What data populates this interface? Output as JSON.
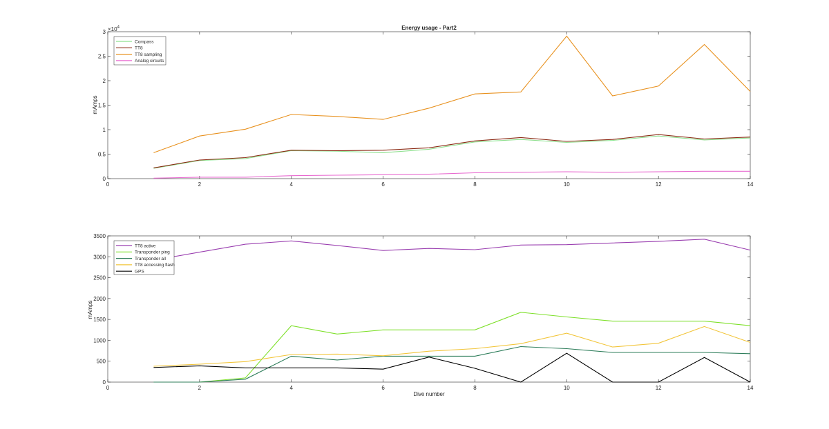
{
  "chart_data": [
    {
      "type": "line",
      "title": "Energy usage - Part2",
      "xlabel": "",
      "ylabel": "mAmps",
      "exponent_label": "×10",
      "exponent_power": "4",
      "xlim": [
        0,
        14
      ],
      "ylim": [
        0,
        30000
      ],
      "x_ticks": [
        "0",
        "2",
        "4",
        "6",
        "8",
        "10",
        "12",
        "14"
      ],
      "y_ticks": [
        "0",
        "0.5",
        "1",
        "1.5",
        "2",
        "2.5",
        "3"
      ],
      "y_tick_values": [
        0,
        5000,
        10000,
        15000,
        20000,
        25000,
        30000
      ],
      "legend_position": "top-left",
      "x": [
        1,
        2,
        3,
        4,
        5,
        6,
        7,
        8,
        9,
        10,
        11,
        12,
        13,
        14
      ],
      "series": [
        {
          "name": "Compass",
          "color": "#8fe08f",
          "values": [
            2100,
            3700,
            4100,
            5700,
            5600,
            5300,
            6000,
            7500,
            8000,
            7400,
            7800,
            8700,
            7900,
            8300
          ]
        },
        {
          "name": "TT8",
          "color": "#8b2a14",
          "values": [
            2200,
            3800,
            4300,
            5800,
            5700,
            5800,
            6300,
            7700,
            8400,
            7600,
            8000,
            9000,
            8100,
            8500
          ]
        },
        {
          "name": "TT8 sampling",
          "color": "#e8911e",
          "values": [
            5300,
            8700,
            10100,
            13100,
            12700,
            12100,
            14400,
            17300,
            17700,
            29100,
            16900,
            18900,
            27400,
            17800
          ]
        },
        {
          "name": "Analog circuits",
          "color": "#e86ad0",
          "values": [
            100,
            300,
            300,
            600,
            700,
            800,
            900,
            1200,
            1300,
            1400,
            1300,
            1400,
            1500,
            1500
          ]
        }
      ]
    },
    {
      "type": "line",
      "title": "",
      "xlabel": "Dive number",
      "ylabel": "mAmps",
      "xlim": [
        0,
        14
      ],
      "ylim": [
        0,
        3500
      ],
      "x_ticks": [
        "0",
        "2",
        "4",
        "6",
        "8",
        "10",
        "12",
        "14"
      ],
      "y_ticks": [
        "0",
        "500",
        "1000",
        "1500",
        "2000",
        "2500",
        "3000",
        "3500"
      ],
      "y_tick_values": [
        0,
        500,
        1000,
        1500,
        2000,
        2500,
        3000,
        3500
      ],
      "legend_position": "top-left",
      "x": [
        1,
        2,
        3,
        4,
        5,
        6,
        7,
        8,
        9,
        10,
        11,
        12,
        13,
        14
      ],
      "series": [
        {
          "name": "TT8 active",
          "color": "#9a3fb0",
          "values": [
            2920,
            3110,
            3300,
            3380,
            3270,
            3150,
            3200,
            3170,
            3280,
            3290,
            3330,
            3370,
            3420,
            3160
          ]
        },
        {
          "name": "Transponder ping",
          "color": "#7ee02a",
          "values": [
            0,
            0,
            100,
            1350,
            1150,
            1250,
            1250,
            1250,
            1670,
            1560,
            1460,
            1460,
            1460,
            1350
          ]
        },
        {
          "name": "Transponder all",
          "color": "#2d7d5a",
          "values": [
            0,
            0,
            70,
            620,
            530,
            620,
            620,
            620,
            850,
            800,
            710,
            710,
            710,
            680
          ]
        },
        {
          "name": "TT8 accessing flash",
          "color": "#f2c53a",
          "values": [
            380,
            430,
            490,
            660,
            670,
            630,
            740,
            800,
            920,
            1170,
            840,
            930,
            1330,
            950
          ]
        },
        {
          "name": "GPS",
          "color": "#000000",
          "values": [
            350,
            390,
            340,
            340,
            340,
            310,
            600,
            330,
            0,
            690,
            0,
            0,
            590,
            0
          ]
        }
      ]
    }
  ]
}
